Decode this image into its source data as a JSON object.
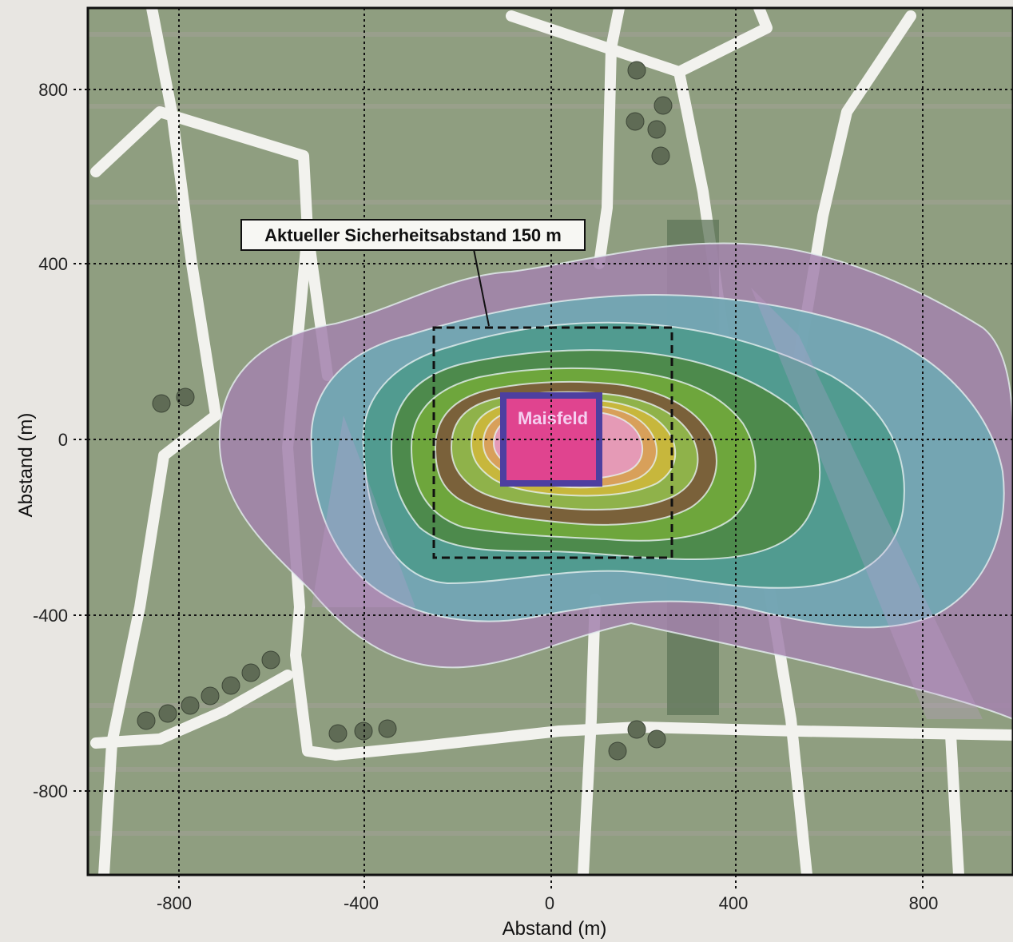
{
  "map": {
    "field_label": "Maisfeld",
    "callout_label": "Aktueller Sicherheitsabstand 150 m",
    "x_axis_title": "Abstand (m)",
    "y_axis_title": "Abstand (m)",
    "x_ticks": [
      "-800",
      "-400",
      "0",
      "400",
      "800"
    ],
    "y_ticks": [
      "800",
      "400",
      "0",
      "-400",
      "-800"
    ],
    "colors": {
      "ground": "#8f9e80",
      "road": "#f2f2ee",
      "tree": "#5f6b55",
      "field": "#e0448f",
      "field_border": "#4d3fa0",
      "dashed_box": "#111111",
      "contour_line": "#e6f0f0",
      "contour_fills": [
        "#a383ad",
        "#6fa9b4",
        "#4f9a8e",
        "#4d8a4c",
        "#6ea63c",
        "#8fb24a",
        "#7b5a3a",
        "#c7b73c",
        "#d8a05a",
        "#e59ab6"
      ]
    }
  }
}
